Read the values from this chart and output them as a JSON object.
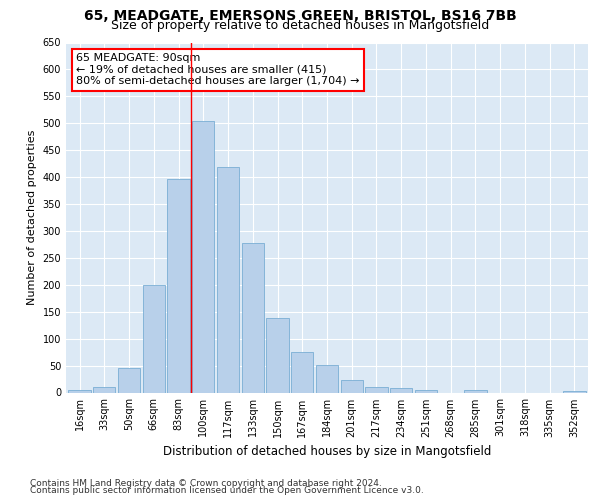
{
  "title1": "65, MEADGATE, EMERSONS GREEN, BRISTOL, BS16 7BB",
  "title2": "Size of property relative to detached houses in Mangotsfield",
  "xlabel": "Distribution of detached houses by size in Mangotsfield",
  "ylabel": "Number of detached properties",
  "categories": [
    "16sqm",
    "33sqm",
    "50sqm",
    "66sqm",
    "83sqm",
    "100sqm",
    "117sqm",
    "133sqm",
    "150sqm",
    "167sqm",
    "184sqm",
    "201sqm",
    "217sqm",
    "234sqm",
    "251sqm",
    "268sqm",
    "285sqm",
    "301sqm",
    "318sqm",
    "335sqm",
    "352sqm"
  ],
  "values": [
    5,
    10,
    45,
    200,
    397,
    505,
    418,
    277,
    138,
    75,
    52,
    23,
    10,
    8,
    5,
    0,
    5,
    0,
    0,
    0,
    3
  ],
  "bar_color": "#b8d0ea",
  "bar_edge_color": "#7aaed4",
  "vline_x_index": 4.5,
  "vline_color": "red",
  "annotation_line1": "65 MEADGATE: 90sqm",
  "annotation_line2": "← 19% of detached houses are smaller (415)",
  "annotation_line3": "80% of semi-detached houses are larger (1,704) →",
  "annotation_box_color": "white",
  "annotation_box_edge_color": "red",
  "ylim": [
    0,
    650
  ],
  "yticks": [
    0,
    50,
    100,
    150,
    200,
    250,
    300,
    350,
    400,
    450,
    500,
    550,
    600,
    650
  ],
  "footer1": "Contains HM Land Registry data © Crown copyright and database right 2024.",
  "footer2": "Contains public sector information licensed under the Open Government Licence v3.0.",
  "bg_color": "#dce9f5",
  "title1_fontsize": 10,
  "title2_fontsize": 9,
  "xlabel_fontsize": 8.5,
  "ylabel_fontsize": 8,
  "tick_fontsize": 7,
  "annotation_fontsize": 8,
  "footer_fontsize": 6.5
}
